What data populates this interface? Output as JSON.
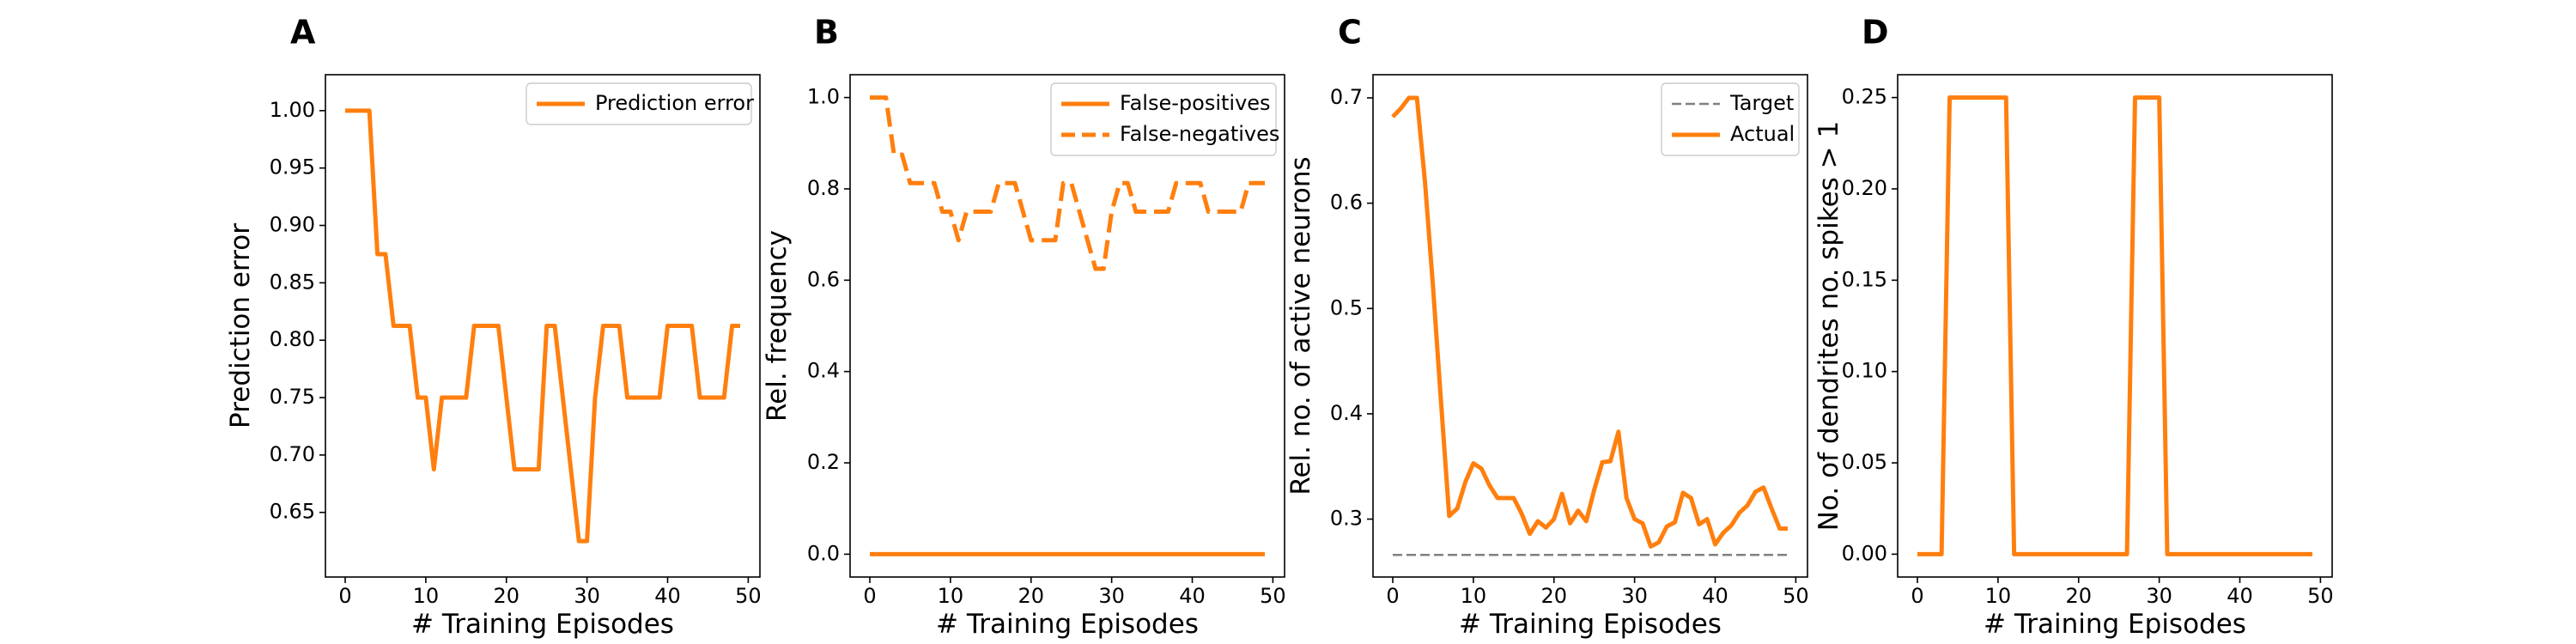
{
  "colors": {
    "orange": "#ff7f0e",
    "target": "#808080",
    "axes": "#000000"
  },
  "chart_data": [
    {
      "id": "A",
      "type": "line",
      "panel_letter": "A",
      "xlabel": "# Training Episodes",
      "ylabel": "Prediction error",
      "xlim": [
        -2.45,
        51.45
      ],
      "ylim": [
        0.5937,
        1.0313
      ],
      "xticks": [
        0,
        10,
        20,
        30,
        40,
        50
      ],
      "xtick_labels": [
        "0",
        "10",
        "20",
        "30",
        "40",
        "50"
      ],
      "yticks": [
        0.65,
        0.7,
        0.75,
        0.8,
        0.85,
        0.9,
        0.95,
        1.0
      ],
      "ytick_labels": [
        "0.65",
        "0.70",
        "0.75",
        "0.80",
        "0.85",
        "0.90",
        "0.95",
        "1.00"
      ],
      "legend_position": "top-right",
      "series": [
        {
          "name": "Prediction error",
          "color": "#ff7f0e",
          "dash": "solid",
          "x": [
            0,
            1,
            2,
            3,
            4,
            5,
            6,
            7,
            8,
            9,
            10,
            11,
            12,
            13,
            14,
            15,
            16,
            17,
            18,
            19,
            20,
            21,
            22,
            23,
            24,
            25,
            26,
            27,
            28,
            29,
            30,
            31,
            32,
            33,
            34,
            35,
            36,
            37,
            38,
            39,
            40,
            41,
            42,
            43,
            44,
            45,
            46,
            47,
            48,
            49
          ],
          "y": [
            1.0,
            1.0,
            1.0,
            1.0,
            0.875,
            0.875,
            0.8125,
            0.8125,
            0.8125,
            0.75,
            0.75,
            0.6875,
            0.75,
            0.75,
            0.75,
            0.75,
            0.8125,
            0.8125,
            0.8125,
            0.8125,
            0.75,
            0.6875,
            0.6875,
            0.6875,
            0.6875,
            0.8125,
            0.8125,
            0.75,
            0.6875,
            0.625,
            0.625,
            0.75,
            0.8125,
            0.8125,
            0.8125,
            0.75,
            0.75,
            0.75,
            0.75,
            0.75,
            0.8125,
            0.8125,
            0.8125,
            0.8125,
            0.75,
            0.75,
            0.75,
            0.75,
            0.8125,
            0.8125
          ]
        }
      ]
    },
    {
      "id": "B",
      "type": "line",
      "panel_letter": "B",
      "xlabel": "# Training Episodes",
      "ylabel": "Rel. frequency",
      "xlim": [
        -2.45,
        51.45
      ],
      "ylim": [
        -0.05,
        1.05
      ],
      "xticks": [
        0,
        10,
        20,
        30,
        40,
        50
      ],
      "xtick_labels": [
        "0",
        "10",
        "20",
        "30",
        "40",
        "50"
      ],
      "yticks": [
        0.0,
        0.2,
        0.4,
        0.6,
        0.8,
        1.0
      ],
      "ytick_labels": [
        "0.0",
        "0.2",
        "0.4",
        "0.6",
        "0.8",
        "1.0"
      ],
      "legend_position": "top-right",
      "series": [
        {
          "name": "False-positives",
          "color": "#ff7f0e",
          "dash": "solid",
          "x": [
            0,
            1,
            2,
            3,
            4,
            5,
            6,
            7,
            8,
            9,
            10,
            11,
            12,
            13,
            14,
            15,
            16,
            17,
            18,
            19,
            20,
            21,
            22,
            23,
            24,
            25,
            26,
            27,
            28,
            29,
            30,
            31,
            32,
            33,
            34,
            35,
            36,
            37,
            38,
            39,
            40,
            41,
            42,
            43,
            44,
            45,
            46,
            47,
            48,
            49
          ],
          "y": [
            0,
            0,
            0,
            0,
            0,
            0,
            0,
            0,
            0,
            0,
            0,
            0,
            0,
            0,
            0,
            0,
            0,
            0,
            0,
            0,
            0,
            0,
            0,
            0,
            0,
            0,
            0,
            0,
            0,
            0,
            0,
            0,
            0,
            0,
            0,
            0,
            0,
            0,
            0,
            0,
            0,
            0,
            0,
            0,
            0,
            0,
            0,
            0,
            0,
            0
          ]
        },
        {
          "name": "False-negatives",
          "color": "#ff7f0e",
          "dash": "dashed",
          "x": [
            0,
            1,
            2,
            3,
            4,
            5,
            6,
            7,
            8,
            9,
            10,
            11,
            12,
            13,
            14,
            15,
            16,
            17,
            18,
            19,
            20,
            21,
            22,
            23,
            24,
            25,
            26,
            27,
            28,
            29,
            30,
            31,
            32,
            33,
            34,
            35,
            36,
            37,
            38,
            39,
            40,
            41,
            42,
            43,
            44,
            45,
            46,
            47,
            48,
            49
          ],
          "y": [
            1.0,
            1.0,
            1.0,
            0.875,
            0.875,
            0.8125,
            0.8125,
            0.8125,
            0.8125,
            0.75,
            0.75,
            0.6875,
            0.75,
            0.75,
            0.75,
            0.75,
            0.8125,
            0.8125,
            0.8125,
            0.75,
            0.6875,
            0.6875,
            0.6875,
            0.6875,
            0.8125,
            0.8125,
            0.75,
            0.6875,
            0.625,
            0.625,
            0.75,
            0.8125,
            0.8125,
            0.75,
            0.75,
            0.75,
            0.75,
            0.75,
            0.8125,
            0.8125,
            0.8125,
            0.8125,
            0.75,
            0.75,
            0.75,
            0.75,
            0.75,
            0.8125,
            0.8125,
            0.8125
          ]
        }
      ]
    },
    {
      "id": "C",
      "type": "line",
      "panel_letter": "C",
      "xlabel": "# Training Episodes",
      "ylabel": "Rel. no. of active neurons",
      "xlim": [
        -2.45,
        51.45
      ],
      "ylim": [
        0.245,
        0.722
      ],
      "xticks": [
        0,
        10,
        20,
        30,
        40,
        50
      ],
      "xtick_labels": [
        "0",
        "10",
        "20",
        "30",
        "40",
        "50"
      ],
      "yticks": [
        0.3,
        0.4,
        0.5,
        0.6,
        0.7
      ],
      "ytick_labels": [
        "0.3",
        "0.4",
        "0.5",
        "0.6",
        "0.7"
      ],
      "legend_position": "top-right",
      "series": [
        {
          "name": "Target",
          "color": "#808080",
          "dash": "dashed",
          "x": [
            0,
            49
          ],
          "y": [
            0.266,
            0.266
          ]
        },
        {
          "name": "Actual",
          "color": "#ff7f0e",
          "dash": "solid",
          "x": [
            0,
            1,
            2,
            3,
            4,
            5,
            6,
            7,
            8,
            9,
            10,
            11,
            12,
            13,
            14,
            15,
            16,
            17,
            18,
            19,
            20,
            21,
            22,
            23,
            24,
            25,
            26,
            27,
            28,
            29,
            30,
            31,
            32,
            33,
            34,
            35,
            36,
            37,
            38,
            39,
            40,
            41,
            42,
            43,
            44,
            45,
            46,
            47,
            48,
            49
          ],
          "y": [
            0.682,
            0.69,
            0.7,
            0.7,
            0.62,
            0.52,
            0.41,
            0.303,
            0.31,
            0.335,
            0.353,
            0.348,
            0.332,
            0.32,
            0.32,
            0.32,
            0.305,
            0.286,
            0.298,
            0.292,
            0.3,
            0.324,
            0.296,
            0.308,
            0.298,
            0.328,
            0.354,
            0.355,
            0.383,
            0.32,
            0.3,
            0.296,
            0.274,
            0.278,
            0.293,
            0.297,
            0.325,
            0.32,
            0.295,
            0.3,
            0.276,
            0.287,
            0.294,
            0.306,
            0.313,
            0.326,
            0.33,
            0.31,
            0.291,
            0.291
          ]
        }
      ]
    },
    {
      "id": "D",
      "type": "line",
      "panel_letter": "D",
      "xlabel": "# Training Episodes",
      "ylabel": "No. of dendrites no. spikes > 1",
      "xlim": [
        -2.45,
        51.45
      ],
      "ylim": [
        -0.0125,
        0.2625
      ],
      "xticks": [
        0,
        10,
        20,
        30,
        40,
        50
      ],
      "xtick_labels": [
        "0",
        "10",
        "20",
        "30",
        "40",
        "50"
      ],
      "yticks": [
        0.0,
        0.05,
        0.1,
        0.15,
        0.2,
        0.25
      ],
      "ytick_labels": [
        "0.00",
        "0.05",
        "0.10",
        "0.15",
        "0.20",
        "0.25"
      ],
      "legend_position": "none",
      "series": [
        {
          "name": "",
          "color": "#ff7f0e",
          "dash": "solid",
          "x": [
            0,
            1,
            2,
            3,
            4,
            5,
            6,
            7,
            8,
            9,
            10,
            11,
            12,
            13,
            14,
            15,
            16,
            17,
            18,
            19,
            20,
            21,
            22,
            23,
            24,
            25,
            26,
            27,
            28,
            29,
            30,
            31,
            32,
            33,
            34,
            35,
            36,
            37,
            38,
            39,
            40,
            41,
            42,
            43,
            44,
            45,
            46,
            47,
            48,
            49
          ],
          "y": [
            0,
            0,
            0,
            0,
            0.25,
            0.25,
            0.25,
            0.25,
            0.25,
            0.25,
            0.25,
            0.25,
            0,
            0,
            0,
            0,
            0,
            0,
            0,
            0,
            0,
            0,
            0,
            0,
            0,
            0,
            0,
            0.25,
            0.25,
            0.25,
            0.25,
            0,
            0,
            0,
            0,
            0,
            0,
            0,
            0,
            0,
            0,
            0,
            0,
            0,
            0,
            0,
            0,
            0,
            0,
            0
          ]
        }
      ]
    }
  ]
}
